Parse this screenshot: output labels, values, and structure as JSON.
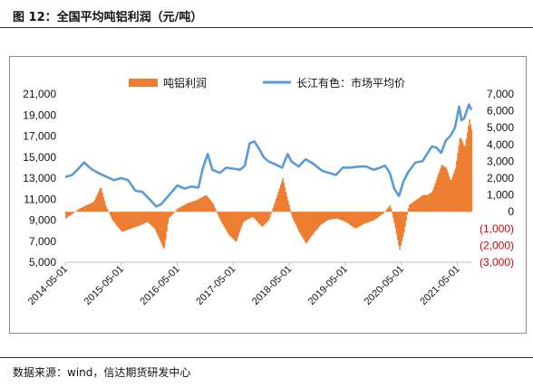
{
  "header": {
    "title": "图 12：全国平均吨铝利润（元/吨）"
  },
  "footer": {
    "source": "数据来源：wind，信达期货研发中心"
  },
  "colors": {
    "profit": "#ED7D31",
    "price": "#5B9BD5",
    "negative_tick": "#E00000"
  },
  "chart_data": {
    "type": "bar",
    "title": "",
    "legend": {
      "placement": "top",
      "entries": [
        {
          "name": "吨铝利润",
          "kind": "bar"
        },
        {
          "name": "长江有色：市场平均价",
          "kind": "line"
        }
      ]
    },
    "x_axis": {
      "tick_labels": [
        "2014-05-01",
        "2015-05-01",
        "2016-05-01",
        "2017-05-01",
        "2018-05-01",
        "2019-05-01",
        "2020-05-01",
        "2021-05-01"
      ],
      "range": [
        "2014-05-01",
        "2021-07-31"
      ]
    },
    "y_left": {
      "range": [
        5000,
        21000
      ],
      "ticks": [
        "5,000",
        "7,000",
        "9,000",
        "11,000",
        "13,000",
        "15,000",
        "17,000",
        "19,000",
        "21,000"
      ]
    },
    "y_right": {
      "range": [
        -3000,
        7000
      ],
      "ticks": [
        "(3,000)",
        "(2,000)",
        "(1,000)",
        "0",
        "1,000",
        "2,000",
        "3,000",
        "4,000",
        "5,000",
        "6,000",
        "7,000"
      ]
    },
    "series": [
      {
        "name": "吨铝利润",
        "type": "bar",
        "axis": "right",
        "points": [
          [
            "2014-05-01",
            -400
          ],
          [
            "2014-08-01",
            200
          ],
          [
            "2014-11-01",
            600
          ],
          [
            "2014-12-15",
            1500
          ],
          [
            "2015-01-15",
            400
          ],
          [
            "2015-03-01",
            -500
          ],
          [
            "2015-05-01",
            -1200
          ],
          [
            "2015-07-01",
            -1000
          ],
          [
            "2015-09-01",
            -800
          ],
          [
            "2015-10-15",
            -600
          ],
          [
            "2015-12-01",
            -1000
          ],
          [
            "2016-01-01",
            -1600
          ],
          [
            "2016-02-01",
            -2300
          ],
          [
            "2016-03-01",
            -400
          ],
          [
            "2016-05-01",
            200
          ],
          [
            "2016-07-01",
            500
          ],
          [
            "2016-09-01",
            700
          ],
          [
            "2016-11-01",
            1000
          ],
          [
            "2016-12-15",
            500
          ],
          [
            "2017-02-01",
            -500
          ],
          [
            "2017-04-01",
            -1400
          ],
          [
            "2017-05-15",
            -1800
          ],
          [
            "2017-07-01",
            -600
          ],
          [
            "2017-09-01",
            -300
          ],
          [
            "2017-11-01",
            -900
          ],
          [
            "2017-12-15",
            -500
          ],
          [
            "2018-02-01",
            800
          ],
          [
            "2018-03-15",
            2000
          ],
          [
            "2018-04-15",
            800
          ],
          [
            "2018-05-15",
            -300
          ],
          [
            "2018-07-01",
            -1200
          ],
          [
            "2018-08-15",
            -1900
          ],
          [
            "2018-10-01",
            -1300
          ],
          [
            "2018-11-15",
            -800
          ],
          [
            "2019-01-01",
            -500
          ],
          [
            "2019-03-01",
            -400
          ],
          [
            "2019-05-01",
            -600
          ],
          [
            "2019-07-01",
            -1000
          ],
          [
            "2019-09-01",
            -700
          ],
          [
            "2019-11-01",
            -500
          ],
          [
            "2020-01-01",
            -100
          ],
          [
            "2020-02-15",
            400
          ],
          [
            "2020-03-15",
            -800
          ],
          [
            "2020-04-15",
            -2300
          ],
          [
            "2020-05-15",
            -1200
          ],
          [
            "2020-06-15",
            400
          ],
          [
            "2020-08-01",
            700
          ],
          [
            "2020-09-15",
            1000
          ],
          [
            "2020-10-15",
            1000
          ],
          [
            "2020-11-15",
            1200
          ],
          [
            "2020-12-15",
            2000
          ],
          [
            "2021-01-15",
            2800
          ],
          [
            "2021-02-15",
            2600
          ],
          [
            "2021-03-15",
            1800
          ],
          [
            "2021-04-15",
            2600
          ],
          [
            "2021-05-15",
            4500
          ],
          [
            "2021-06-15",
            3800
          ],
          [
            "2021-07-15",
            5500
          ],
          [
            "2021-07-31",
            4800
          ]
        ]
      },
      {
        "name": "长江有色：市场平均价",
        "type": "line",
        "axis": "left",
        "points": [
          [
            "2014-05-01",
            13100
          ],
          [
            "2014-06-15",
            13300
          ],
          [
            "2014-08-01",
            14000
          ],
          [
            "2014-09-01",
            14500
          ],
          [
            "2014-10-15",
            13900
          ],
          [
            "2014-12-01",
            13500
          ],
          [
            "2015-01-15",
            13200
          ],
          [
            "2015-03-15",
            12800
          ],
          [
            "2015-05-01",
            13000
          ],
          [
            "2015-06-15",
            12800
          ],
          [
            "2015-08-01",
            11800
          ],
          [
            "2015-09-15",
            11700
          ],
          [
            "2015-11-01",
            11000
          ],
          [
            "2015-12-15",
            10300
          ],
          [
            "2016-01-15",
            10500
          ],
          [
            "2016-03-15",
            11500
          ],
          [
            "2016-05-01",
            12300
          ],
          [
            "2016-06-15",
            12000
          ],
          [
            "2016-08-01",
            12200
          ],
          [
            "2016-09-15",
            12100
          ],
          [
            "2016-10-15",
            14000
          ],
          [
            "2016-11-15",
            15300
          ],
          [
            "2016-12-15",
            13800
          ],
          [
            "2017-02-01",
            13500
          ],
          [
            "2017-03-15",
            14000
          ],
          [
            "2017-05-01",
            13900
          ],
          [
            "2017-06-15",
            13800
          ],
          [
            "2017-07-15",
            14200
          ],
          [
            "2017-08-15",
            16300
          ],
          [
            "2017-09-15",
            16500
          ],
          [
            "2017-10-15",
            15800
          ],
          [
            "2017-11-15",
            15000
          ],
          [
            "2017-12-15",
            14600
          ],
          [
            "2018-02-01",
            14300
          ],
          [
            "2018-03-15",
            14000
          ],
          [
            "2018-04-20",
            15300
          ],
          [
            "2018-05-15",
            14600
          ],
          [
            "2018-07-01",
            14100
          ],
          [
            "2018-08-15",
            14800
          ],
          [
            "2018-10-01",
            14400
          ],
          [
            "2018-12-01",
            13700
          ],
          [
            "2019-01-15",
            13500
          ],
          [
            "2019-03-01",
            13300
          ],
          [
            "2019-04-15",
            14000
          ],
          [
            "2019-06-01",
            14000
          ],
          [
            "2019-08-01",
            14100
          ],
          [
            "2019-09-15",
            14100
          ],
          [
            "2019-11-01",
            13800
          ],
          [
            "2019-12-15",
            14000
          ],
          [
            "2020-01-15",
            14200
          ],
          [
            "2020-02-15",
            13500
          ],
          [
            "2020-03-15",
            12000
          ],
          [
            "2020-04-15",
            11300
          ],
          [
            "2020-05-15",
            12700
          ],
          [
            "2020-06-15",
            13600
          ],
          [
            "2020-08-01",
            14500
          ],
          [
            "2020-09-15",
            14600
          ],
          [
            "2020-10-15",
            15300
          ],
          [
            "2020-11-15",
            16000
          ],
          [
            "2020-12-15",
            15900
          ],
          [
            "2021-01-15",
            15400
          ],
          [
            "2021-02-15",
            16600
          ],
          [
            "2021-03-15",
            17000
          ],
          [
            "2021-04-15",
            17800
          ],
          [
            "2021-05-12",
            19800
          ],
          [
            "2021-05-28",
            18500
          ],
          [
            "2021-06-15",
            18700
          ],
          [
            "2021-07-15",
            20000
          ],
          [
            "2021-07-31",
            19500
          ]
        ]
      }
    ]
  }
}
